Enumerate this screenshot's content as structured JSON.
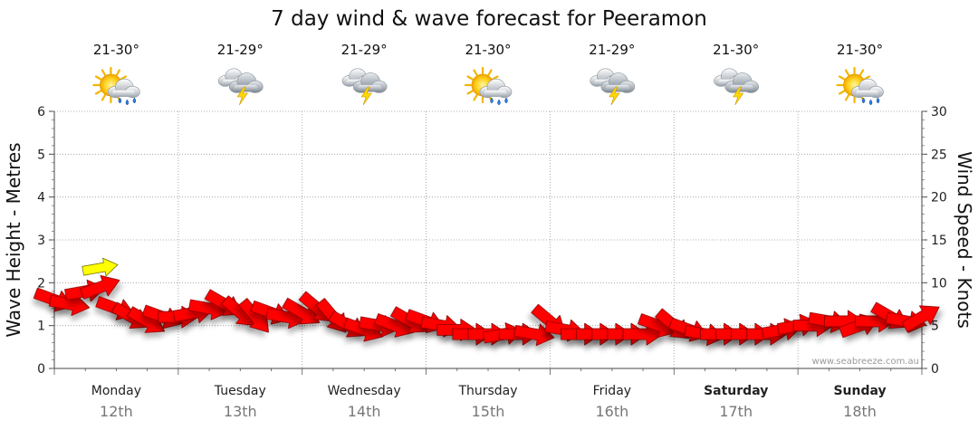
{
  "chart_data": {
    "type": "scatter",
    "title": "7 day wind & wave forecast for Peeramon",
    "left_axis": {
      "label": "Wave Height - Metres",
      "range": [
        0,
        6
      ],
      "ticks": [
        0,
        1,
        2,
        3,
        4,
        5,
        6
      ]
    },
    "right_axis": {
      "label": "Wind Speed - Knots",
      "range": [
        0,
        30
      ],
      "ticks": [
        0,
        5,
        10,
        15,
        20,
        25,
        30
      ]
    },
    "grid": true,
    "watermark": "www.seabreeze.com.au",
    "days": [
      {
        "name": "Monday",
        "date": "12th",
        "temp": "21-30°",
        "weather": "partly-cloudy-showers",
        "weekend": false
      },
      {
        "name": "Tuesday",
        "date": "13th",
        "temp": "21-29°",
        "weather": "thunderstorm",
        "weekend": false
      },
      {
        "name": "Wednesday",
        "date": "14th",
        "temp": "21-29°",
        "weather": "thunderstorm",
        "weekend": false
      },
      {
        "name": "Thursday",
        "date": "15th",
        "temp": "21-30°",
        "weather": "partly-cloudy-showers",
        "weekend": false
      },
      {
        "name": "Friday",
        "date": "16th",
        "temp": "21-29°",
        "weather": "thunderstorm",
        "weekend": false
      },
      {
        "name": "Saturday",
        "date": "17th",
        "temp": "21-30°",
        "weather": "thunderstorm",
        "weekend": true
      },
      {
        "name": "Sunday",
        "date": "18th",
        "temp": "21-30°",
        "weather": "partly-cloudy-showers",
        "weekend": true
      }
    ],
    "series": [
      {
        "name": "Wind",
        "unit": "knots",
        "color": "#ff0000",
        "x_hours": [
          0,
          3,
          6,
          9,
          12,
          15,
          18,
          21,
          24,
          27,
          30,
          33,
          36,
          39,
          42,
          45,
          48,
          51,
          54,
          57,
          60,
          63,
          66,
          69,
          72,
          75,
          78,
          81,
          84,
          87,
          90,
          93,
          96,
          99,
          102,
          105,
          108,
          111,
          114,
          117,
          120,
          123,
          126,
          129,
          132,
          135,
          138,
          141,
          144,
          147,
          150,
          153,
          156,
          159,
          162,
          165,
          168
        ],
        "speed": [
          8,
          7.5,
          9,
          9.5,
          7,
          6,
          5.5,
          6,
          6,
          6.5,
          7,
          7.5,
          6.5,
          6,
          6.5,
          6,
          6.5,
          7,
          6,
          5,
          4.5,
          5,
          5,
          5.5,
          5.5,
          5,
          4.5,
          4,
          4,
          4,
          4,
          4,
          5.5,
          4.5,
          4,
          4,
          4,
          4,
          4,
          5,
          5,
          4.5,
          4,
          4,
          4,
          4,
          4,
          4.5,
          5,
          5,
          5.5,
          5.5,
          5,
          5.5,
          6,
          5.5,
          6
        ],
        "direction_deg": [
          110,
          100,
          80,
          70,
          110,
          120,
          120,
          110,
          90,
          80,
          100,
          120,
          130,
          140,
          110,
          100,
          120,
          130,
          140,
          120,
          110,
          100,
          110,
          120,
          110,
          100,
          90,
          90,
          90,
          80,
          90,
          100,
          130,
          100,
          90,
          90,
          90,
          90,
          90,
          110,
          130,
          110,
          100,
          90,
          90,
          90,
          90,
          80,
          80,
          90,
          100,
          90,
          70,
          90,
          120,
          100,
          60
        ]
      },
      {
        "name": "Wave",
        "unit": "metres",
        "color": "#ffff00",
        "x_hours": [
          9
        ],
        "height": [
          2.35
        ],
        "direction_deg": [
          80
        ]
      }
    ]
  }
}
